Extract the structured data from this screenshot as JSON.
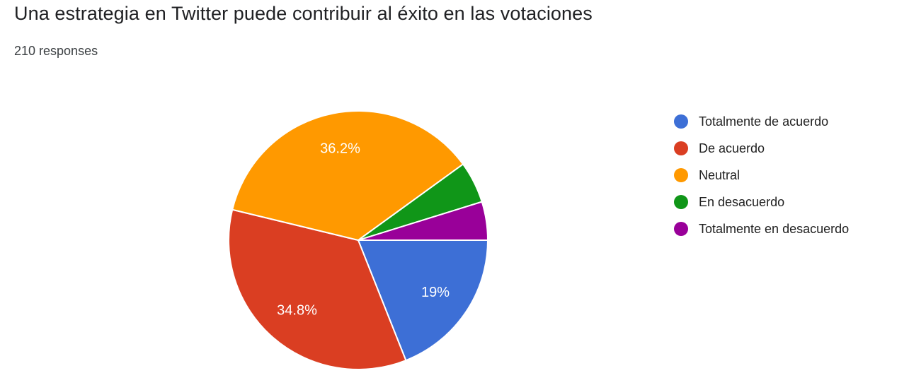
{
  "header": {
    "title": "Una estrategia en Twitter puede contribuir al éxito en las votaciones",
    "responses_count": "210 responses"
  },
  "chart_data": {
    "type": "pie",
    "title": "Una estrategia en Twitter puede contribuir al éxito en las votaciones",
    "subtitle": "210 responses",
    "total_responses": 210,
    "start_angle_deg": 0,
    "direction": "clockwise",
    "legend_position": "right",
    "label_color": "#ffffff",
    "slices": [
      {
        "label": "Totalmente de acuerdo",
        "value_pct": 19.0,
        "display_label": "19%",
        "color": "#3d6fd6"
      },
      {
        "label": "De acuerdo",
        "value_pct": 34.8,
        "display_label": "34.8%",
        "color": "#da3e22"
      },
      {
        "label": "Neutral",
        "value_pct": 36.2,
        "display_label": "36.2%",
        "color": "#ff9900"
      },
      {
        "label": "En desacuerdo",
        "value_pct": 5.2,
        "display_label": "",
        "color": "#109618"
      },
      {
        "label": "Totalmente en desacuerdo",
        "value_pct": 4.8,
        "display_label": "",
        "color": "#990099"
      }
    ]
  }
}
